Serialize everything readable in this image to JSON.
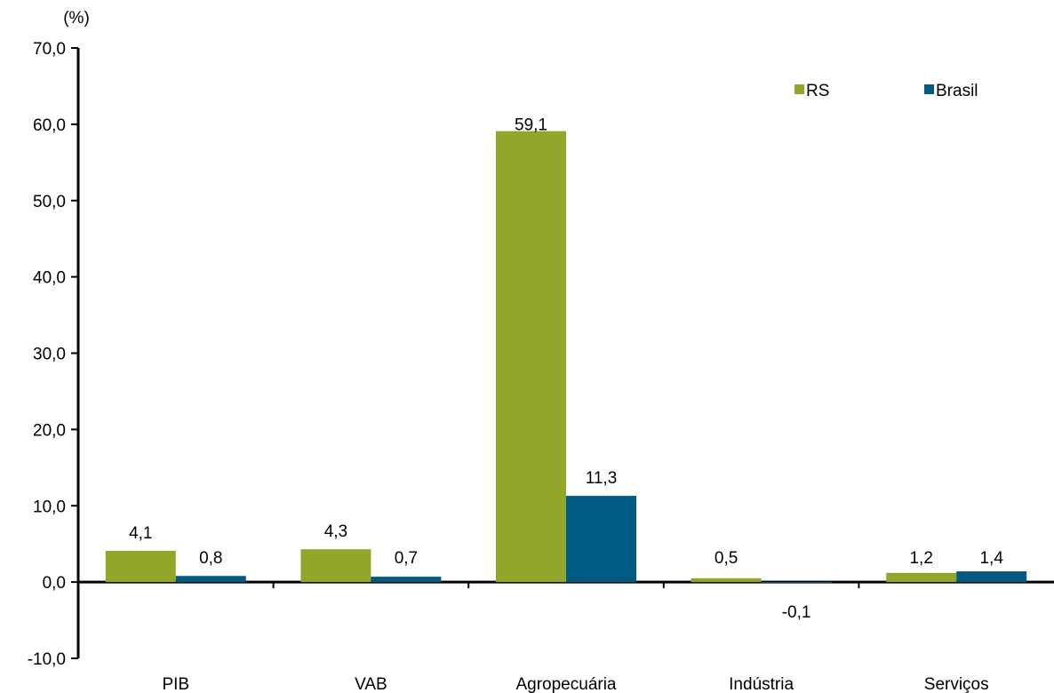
{
  "chart_data": {
    "type": "bar",
    "title": "",
    "ylabel": "(%)",
    "xlabel": "",
    "ylim": [
      -10,
      70
    ],
    "yticks": [
      -10,
      0,
      10,
      20,
      30,
      40,
      50,
      60,
      70
    ],
    "ytick_labels": [
      "-10,0",
      "0,0",
      "10,0",
      "20,0",
      "30,0",
      "40,0",
      "50,0",
      "60,0",
      "70,0"
    ],
    "categories": [
      "PIB",
      "VAB",
      "Agropecuária",
      "Indústria",
      "Serviços"
    ],
    "grid": false,
    "legend_position": "top-right",
    "series": [
      {
        "name": "RS",
        "color": "#92A62A",
        "values": [
          4.1,
          4.3,
          59.1,
          0.5,
          1.2
        ],
        "labels": [
          "4,1",
          "4,3",
          "59,1",
          "0,5",
          "1,2"
        ]
      },
      {
        "name": "Brasil",
        "color": "#005B82",
        "values": [
          0.8,
          0.7,
          11.3,
          -0.1,
          1.4
        ],
        "labels": [
          "0,8",
          "0,7",
          "11,3",
          "-0,1",
          "1,4"
        ]
      }
    ]
  }
}
